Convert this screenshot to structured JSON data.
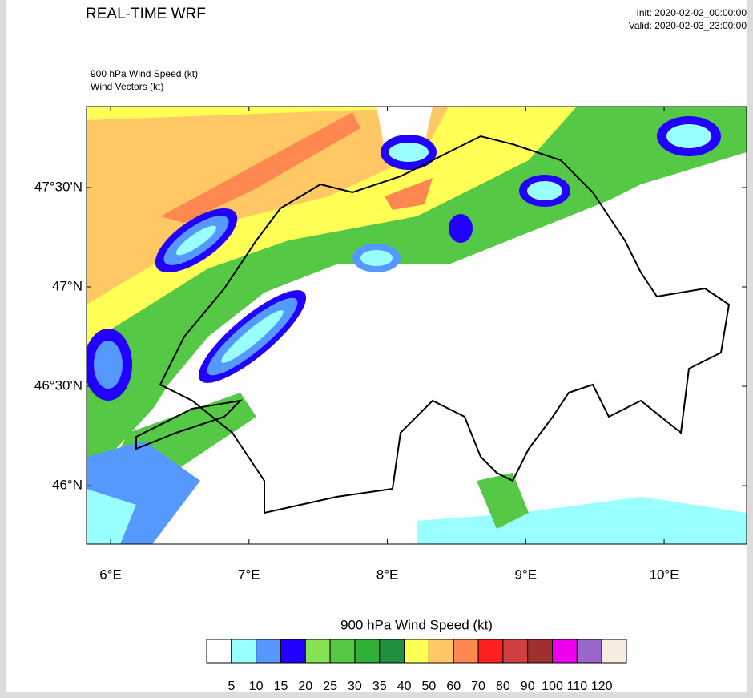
{
  "header": {
    "title": "REAL-TIME WRF",
    "init": "Init: 2020-02-02_00:00:00",
    "valid": "Valid: 2020-02-03_23:00:00",
    "field": "900 hPa Wind Speed   (kt)",
    "vectors": "Wind Vectors   (kt)"
  },
  "map": {
    "lon_range": [
      5.826,
      10.596
    ],
    "lat_range": [
      45.706,
      47.907
    ],
    "lon_ticks": [
      {
        "value": 6,
        "label": "6°E"
      },
      {
        "value": 7,
        "label": "7°E"
      },
      {
        "value": 8,
        "label": "8°E"
      },
      {
        "value": 9,
        "label": "9°E"
      },
      {
        "value": 10,
        "label": "10°E"
      }
    ],
    "lat_ticks": [
      {
        "value": 46,
        "label": "46°N"
      },
      {
        "value": 46.5,
        "label": "46°30'N"
      },
      {
        "value": 47,
        "label": "47°N"
      },
      {
        "value": 47.5,
        "label": "47°30'N"
      }
    ]
  },
  "colorbar": {
    "title": "900 hPa Wind Speed  (kt)",
    "levels": [
      5,
      10,
      15,
      20,
      25,
      30,
      35,
      40,
      50,
      60,
      70,
      80,
      90,
      100,
      110,
      120
    ],
    "colors": [
      "#ffffff",
      "#99ffff",
      "#5599ff",
      "#2200ff",
      "#88e055",
      "#55c845",
      "#30b035",
      "#209040",
      "#ffff55",
      "#ffc865",
      "#ff8850",
      "#ff2020",
      "#d04040",
      "#a03030",
      "#ee00ee",
      "#9966cc",
      "#f8ebe0"
    ]
  }
}
